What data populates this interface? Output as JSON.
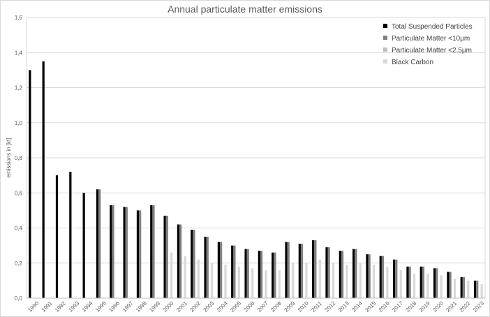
{
  "chart_data": {
    "type": "bar",
    "title": "Annual particulate matter emissions",
    "xlabel": "",
    "ylabel": "emissions in [kt]",
    "ylim": [
      0,
      1.6
    ],
    "ytick_step": 0.2,
    "ytick_labels": [
      "0,0",
      "0,2",
      "0,4",
      "0,6",
      "0,8",
      "1,0",
      "1,2",
      "1,4",
      "1,6"
    ],
    "grid": true,
    "legend_position": "top-right",
    "categories": [
      "1990",
      "1991",
      "1992",
      "1993",
      "1994",
      "1995",
      "1996",
      "1997",
      "1998",
      "1999",
      "2000",
      "2001",
      "2002",
      "2003",
      "2004",
      "2005",
      "2006",
      "2007",
      "2008",
      "2009",
      "2010",
      "2011",
      "2012",
      "2013",
      "2014",
      "2015",
      "2016",
      "2017",
      "2018",
      "2019",
      "2020",
      "2021",
      "2022",
      "2023"
    ],
    "series": [
      {
        "name": "Total Suspended Particles",
        "color": "#000000",
        "values": [
          1.3,
          1.35,
          0.7,
          0.72,
          0.6,
          0.62,
          0.53,
          0.52,
          0.5,
          0.53,
          0.47,
          0.42,
          0.39,
          0.35,
          0.32,
          0.3,
          0.28,
          0.27,
          0.26,
          0.32,
          0.31,
          0.33,
          0.29,
          0.27,
          0.28,
          0.25,
          0.24,
          0.22,
          0.18,
          0.18,
          0.17,
          0.15,
          0.12,
          0.1
        ]
      },
      {
        "name": "Particulate Matter <10µm",
        "color": "#7f7f7f",
        "values": [
          null,
          null,
          null,
          null,
          null,
          0.62,
          0.53,
          0.52,
          0.5,
          0.53,
          0.47,
          0.42,
          0.39,
          0.35,
          0.32,
          0.3,
          0.28,
          0.27,
          0.26,
          0.32,
          0.31,
          0.33,
          0.29,
          0.27,
          0.28,
          0.25,
          0.24,
          0.22,
          0.18,
          0.18,
          0.17,
          0.15,
          0.12,
          0.1
        ]
      },
      {
        "name": "Particulate Matter <2.5µm",
        "color": "#bfbfbf",
        "values": [
          null,
          null,
          null,
          null,
          null,
          null,
          null,
          null,
          null,
          null,
          null,
          null,
          null,
          null,
          null,
          null,
          null,
          null,
          null,
          null,
          null,
          null,
          null,
          null,
          null,
          null,
          null,
          null,
          null,
          null,
          null,
          null,
          null,
          null
        ]
      },
      {
        "name": "Black Carbon",
        "color": "#d9d9d9",
        "values": [
          null,
          null,
          null,
          null,
          null,
          null,
          null,
          null,
          null,
          null,
          0.26,
          0.24,
          0.22,
          0.2,
          0.19,
          0.18,
          0.17,
          0.16,
          0.16,
          0.2,
          0.2,
          0.22,
          0.2,
          0.19,
          0.2,
          0.19,
          0.18,
          0.16,
          0.14,
          0.14,
          0.13,
          0.11,
          0.1,
          0.08
        ]
      }
    ]
  }
}
